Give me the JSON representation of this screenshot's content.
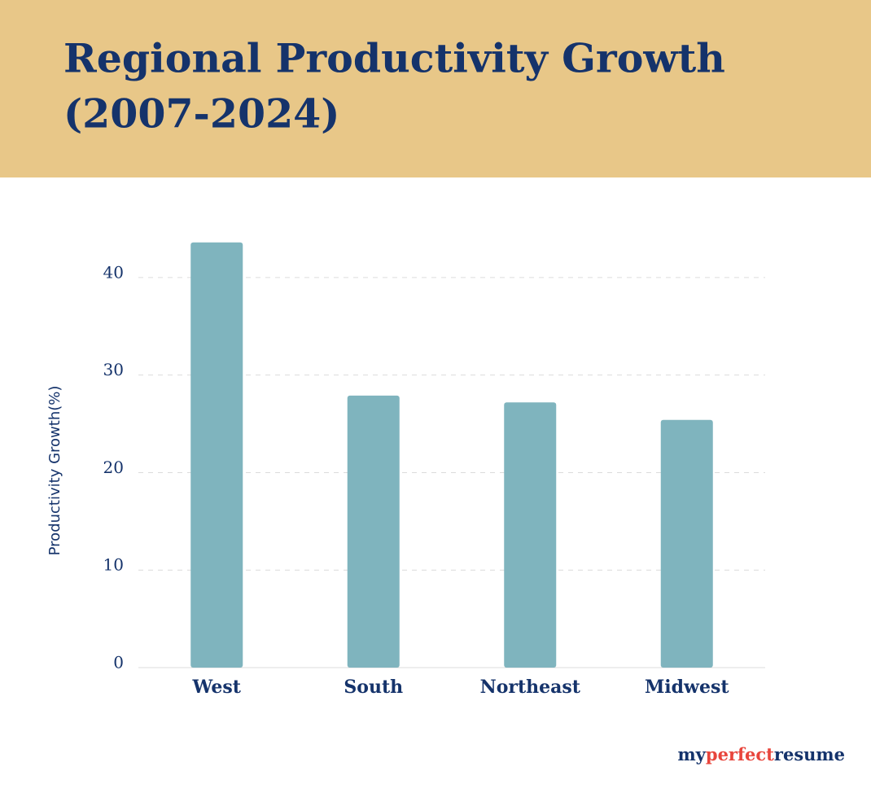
{
  "chart_data": {
    "type": "bar",
    "title": [
      "Regional Productivity Growth",
      "(2007-2024)"
    ],
    "y_label": "Productivity Growth(%)",
    "categories": [
      "West",
      "South",
      "Northeast",
      "Midwest"
    ],
    "values": [
      43.6,
      27.9,
      27.2,
      25.4
    ],
    "color": "#7fb4be",
    "ylim": [
      0,
      45
    ],
    "yticks": [
      0,
      10,
      20,
      30,
      40
    ],
    "grid": true
  },
  "brand": [
    "my",
    "perfect",
    "resume"
  ]
}
